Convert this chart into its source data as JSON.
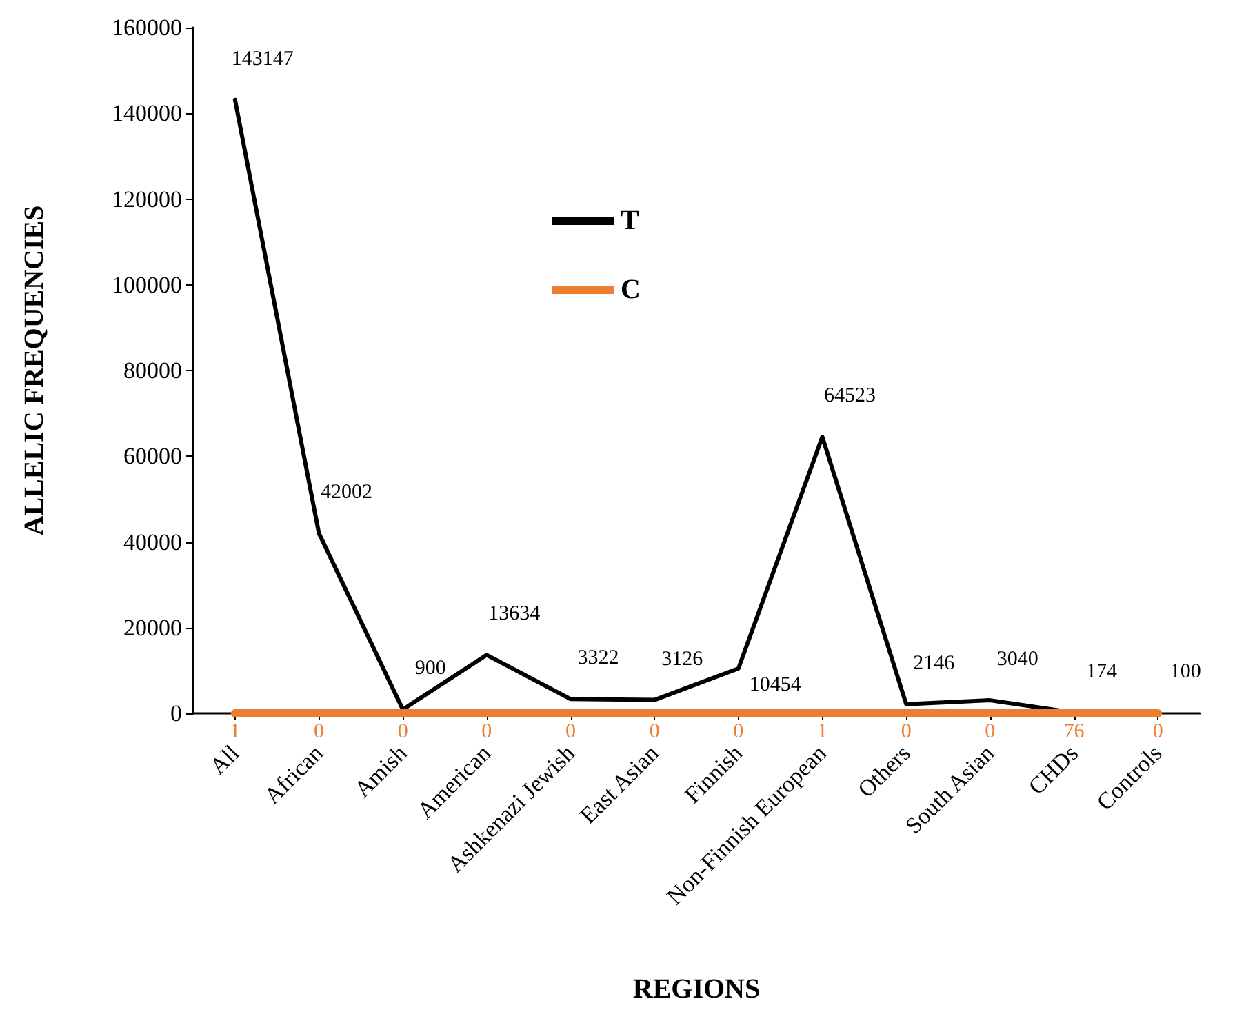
{
  "chart_data": {
    "type": "line",
    "xlabel": "REGIONS",
    "ylabel": "ALLELIC FREQUENCIES",
    "categories": [
      "All",
      "African",
      "Amish",
      "American",
      "Ashkenazi Jewish",
      "East Asian",
      "Finnish",
      "Non-Finnish European",
      "Others",
      "South Asian",
      "CHDs",
      "Controls"
    ],
    "series": [
      {
        "name": "T",
        "color": "#000000",
        "values": [
          143147,
          42002,
          900,
          13634,
          3322,
          3126,
          10454,
          64523,
          2146,
          3040,
          174,
          100
        ]
      },
      {
        "name": "C",
        "color": "#ed7d31",
        "values": [
          1,
          0,
          0,
          0,
          0,
          0,
          0,
          1,
          0,
          0,
          76,
          0
        ]
      }
    ],
    "ylim": [
      0,
      160000
    ],
    "yticks": [
      0,
      20000,
      40000,
      60000,
      80000,
      100000,
      120000,
      140000,
      160000
    ],
    "grid": false,
    "legend": "top",
    "marker": "none",
    "line_style": "solid",
    "data_labels": true
  }
}
